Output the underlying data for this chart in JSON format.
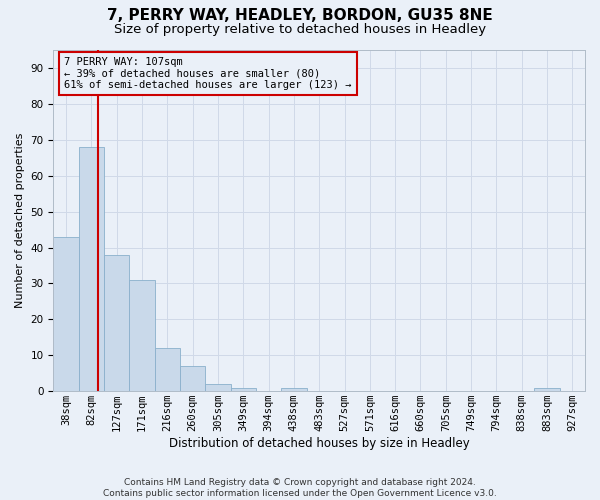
{
  "title1": "7, PERRY WAY, HEADLEY, BORDON, GU35 8NE",
  "title2": "Size of property relative to detached houses in Headley",
  "xlabel": "Distribution of detached houses by size in Headley",
  "ylabel": "Number of detached properties",
  "categories": [
    "38sqm",
    "82sqm",
    "127sqm",
    "171sqm",
    "216sqm",
    "260sqm",
    "305sqm",
    "349sqm",
    "394sqm",
    "438sqm",
    "483sqm",
    "527sqm",
    "571sqm",
    "616sqm",
    "660sqm",
    "705sqm",
    "749sqm",
    "794sqm",
    "838sqm",
    "883sqm",
    "927sqm"
  ],
  "values": [
    43,
    68,
    38,
    31,
    12,
    7,
    2,
    1,
    0,
    1,
    0,
    0,
    0,
    0,
    0,
    0,
    0,
    0,
    0,
    1,
    0
  ],
  "bar_color": "#c9d9ea",
  "bar_edge_color": "#8ab0cc",
  "grid_color": "#d0d9e8",
  "background_color": "#eaf0f8",
  "vline_x": 1.28,
  "vline_color": "#cc0000",
  "annotation_text": "7 PERRY WAY: 107sqm\n← 39% of detached houses are smaller (80)\n61% of semi-detached houses are larger (123) →",
  "annotation_box_edge": "#cc0000",
  "ylim": [
    0,
    95
  ],
  "yticks": [
    0,
    10,
    20,
    30,
    40,
    50,
    60,
    70,
    80,
    90
  ],
  "footer": "Contains HM Land Registry data © Crown copyright and database right 2024.\nContains public sector information licensed under the Open Government Licence v3.0.",
  "title1_fontsize": 11,
  "title2_fontsize": 9.5,
  "xlabel_fontsize": 8.5,
  "ylabel_fontsize": 8,
  "tick_fontsize": 7.5,
  "annotation_fontsize": 7.5,
  "footer_fontsize": 6.5
}
